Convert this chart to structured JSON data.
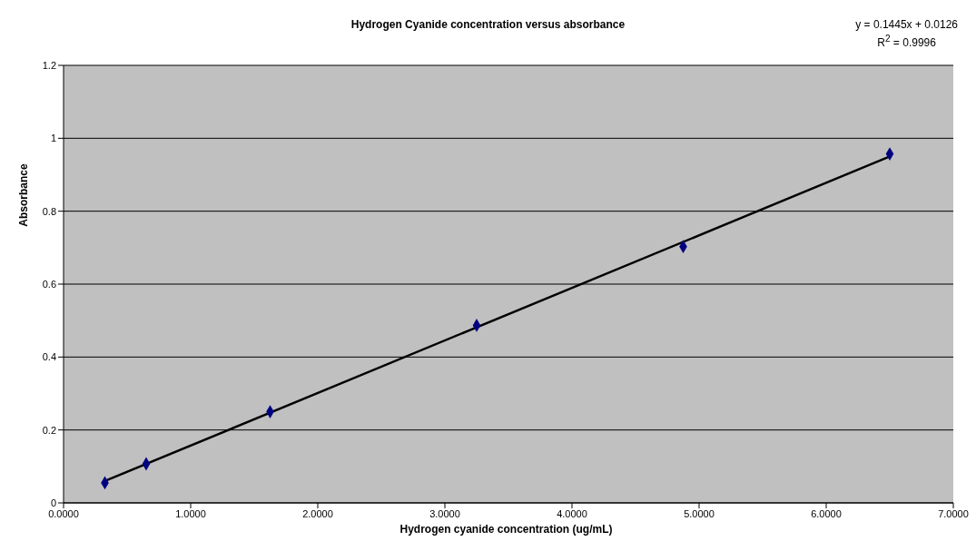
{
  "chart_data": {
    "type": "scatter",
    "title": "Hydrogen Cyanide concentration versus absorbance",
    "xlabel": "Hydrogen cyanide concentration (ug/mL)",
    "ylabel": "Absorbance",
    "x": [
      0.325,
      0.65,
      1.625,
      3.25,
      4.875,
      6.5
    ],
    "series": [
      {
        "color": "#000080",
        "marker": "diamond",
        "values": [
          0.055,
          0.107,
          0.25,
          0.487,
          0.703,
          0.957
        ]
      },
      {
        "type": "line",
        "color": "#000000",
        "marker": "none",
        "x": [
          0.325,
          6.5
        ],
        "values": [
          0.06,
          0.95
        ]
      }
    ],
    "xlim": [
      0,
      7
    ],
    "xticks": [
      {
        "value": 0,
        "label": "0.0000"
      },
      {
        "value": 1,
        "label": "1.0000"
      },
      {
        "value": 2,
        "label": "2.0000"
      },
      {
        "value": 3,
        "label": "3.0000"
      },
      {
        "value": 4,
        "label": "4.0000"
      },
      {
        "value": 5,
        "label": "5.0000"
      },
      {
        "value": 6,
        "label": "6.0000"
      },
      {
        "value": 7,
        "label": "7.0000"
      }
    ],
    "ylim": [
      0,
      1.2
    ],
    "yticks": [
      0,
      0.2,
      0.4,
      0.6,
      0.8,
      1,
      1.2
    ],
    "grid": "y",
    "annotations": [
      "y = 0.1445x + 0.0126",
      "R$^{2}$ = 0.9996"
    ]
  }
}
